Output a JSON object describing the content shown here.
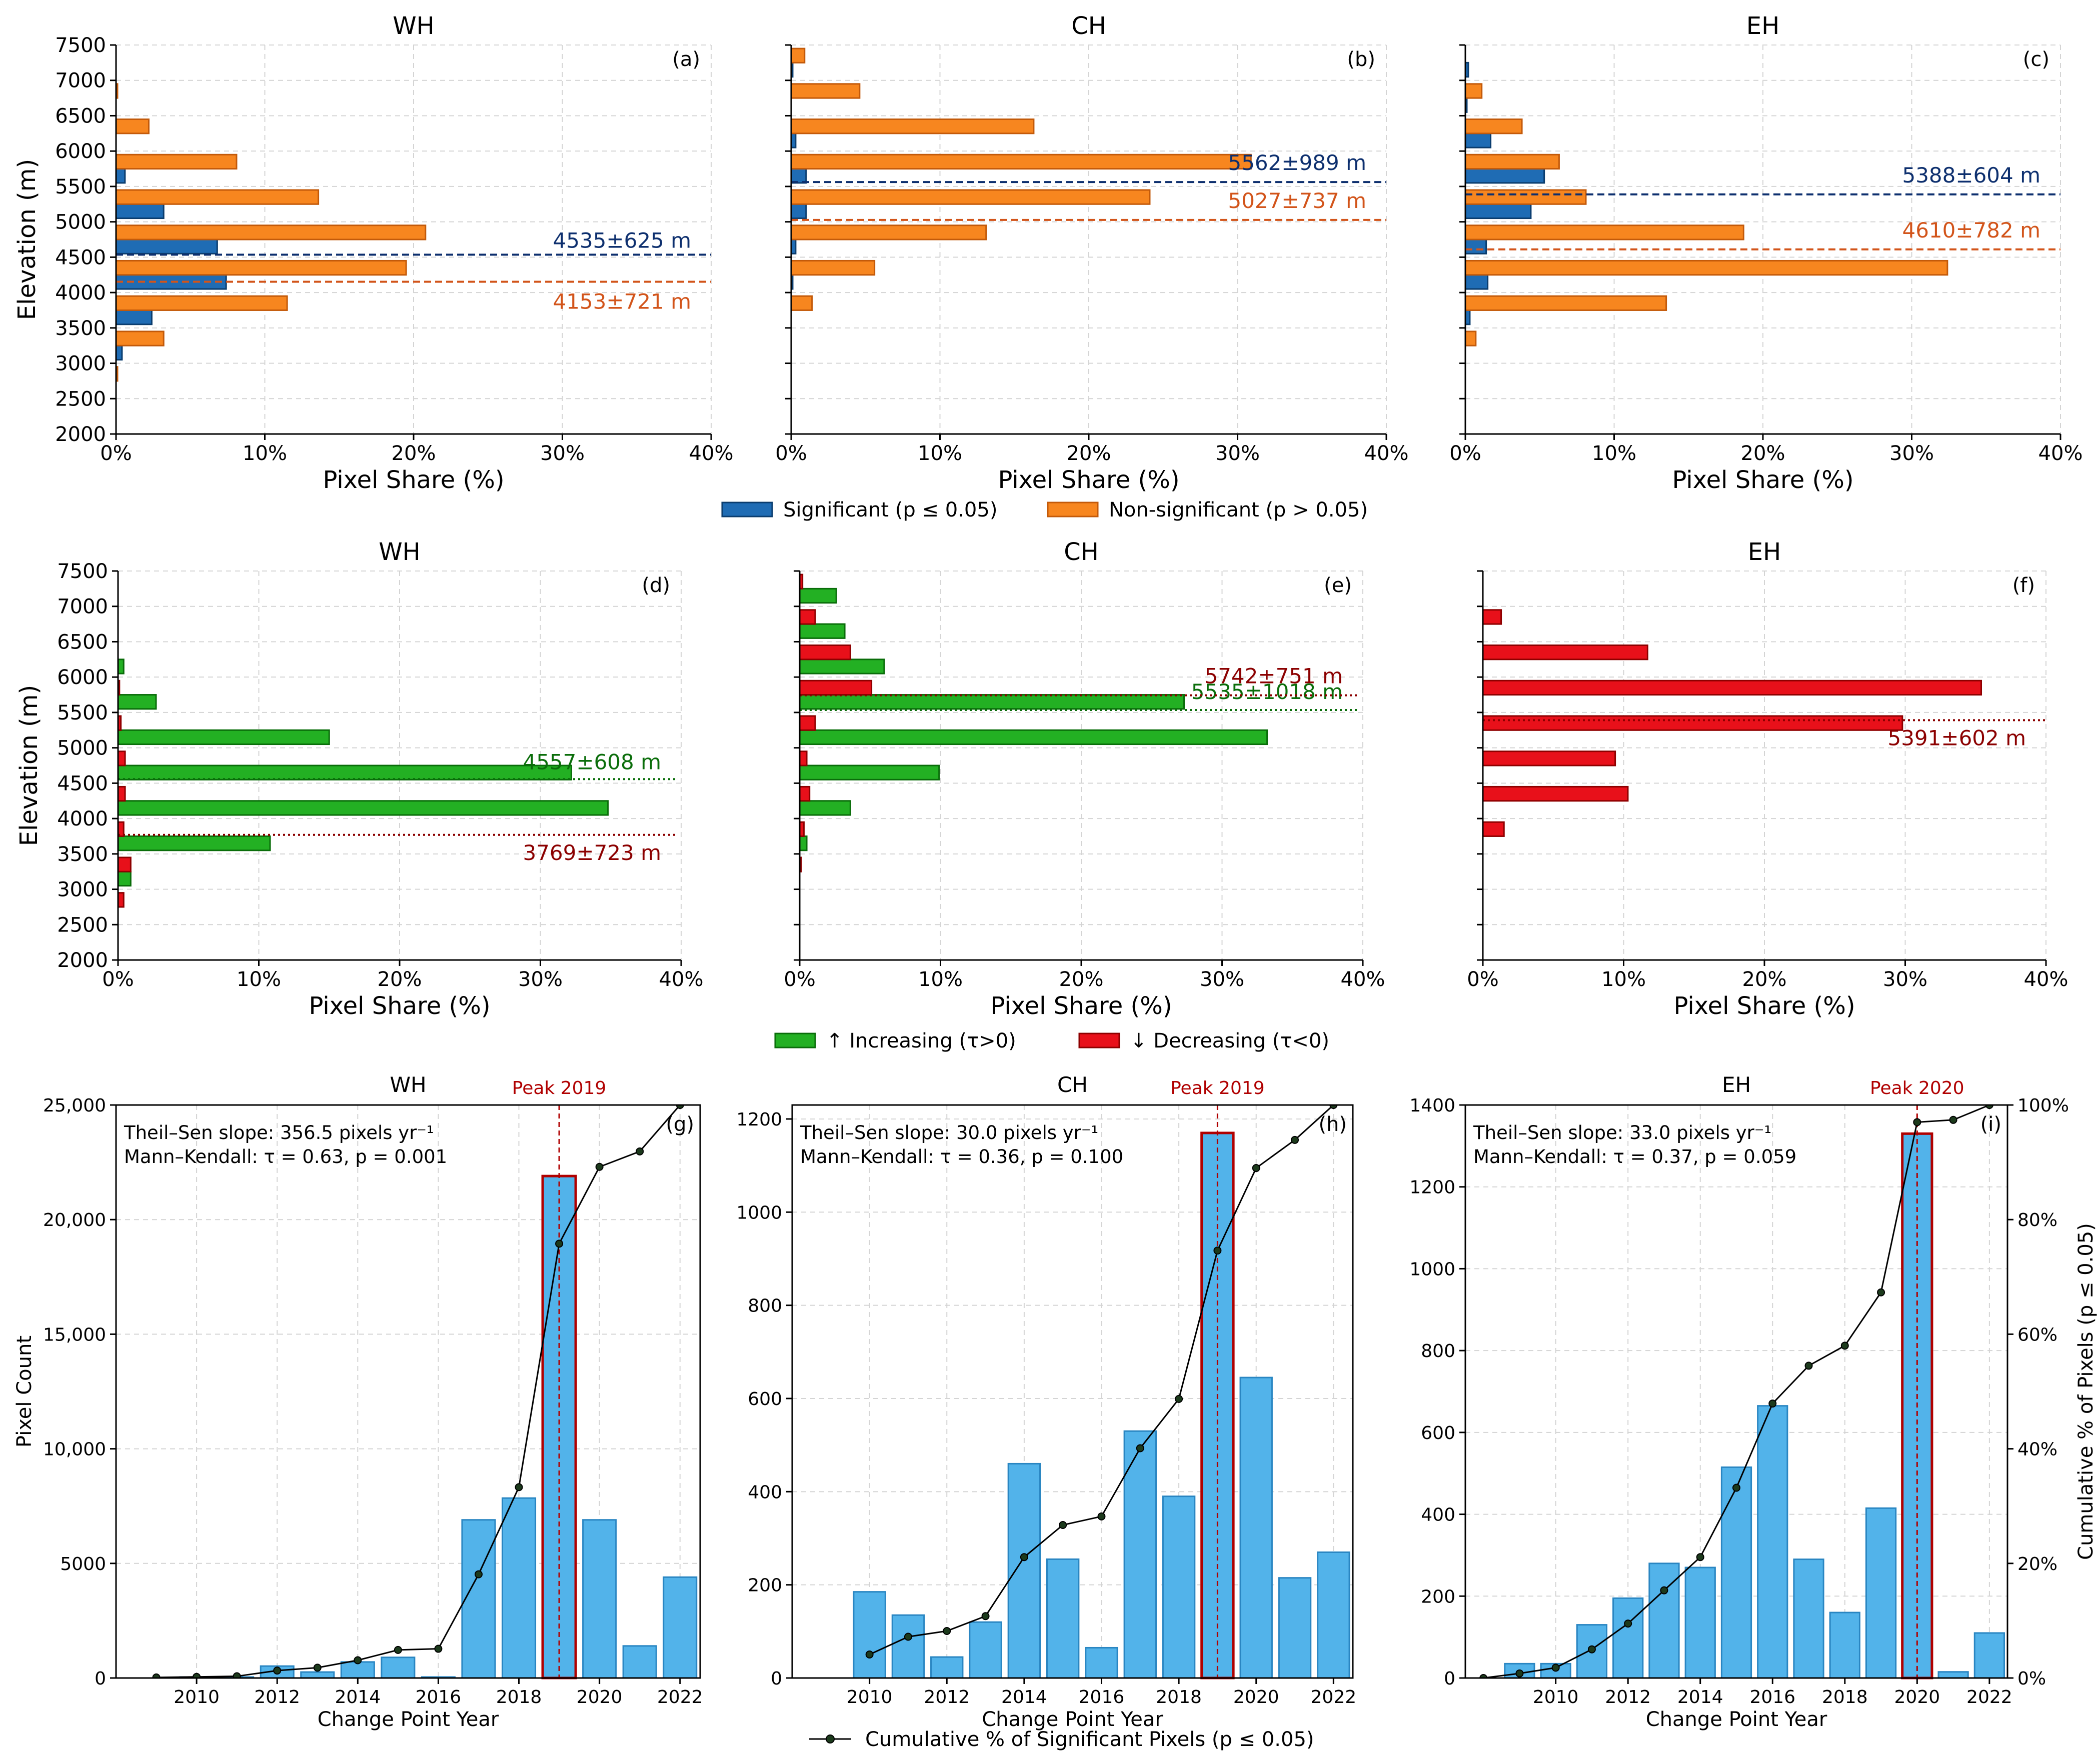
{
  "colors": {
    "significant": "#1f6cb4",
    "significant_edge": "#0b3d6e",
    "nonsignificant": "#f7861f",
    "nonsignificant_edge": "#c35a0a",
    "increasing": "#23b023",
    "increasing_edge": "#0a6d0a",
    "decreasing": "#e8101a",
    "decreasing_edge": "#8e0000",
    "count_bar": "#52b3ea",
    "count_edge": "#2a86c2",
    "peak_edge": "#b00000",
    "sig_line": "#0d2f6e",
    "nonsig_line": "#d2541a",
    "inc_text": "#0a6d0a",
    "dec_text": "#8b0000",
    "cumulative": "#000000"
  },
  "legends": {
    "row1": {
      "significant": "Significant (p ≤ 0.05)",
      "nonsignificant": "Non-significant (p > 0.05)"
    },
    "row2": {
      "increasing": "↑ Increasing (τ>0)",
      "decreasing": "↓ Decreasing (τ<0)"
    },
    "row3": {
      "cumulative": "Cumulative % of Significant Pixels (p ≤ 0.05)"
    }
  },
  "chart_data": [
    {
      "id": "a",
      "type": "bar",
      "orientation": "horizontal",
      "title": "WH",
      "panel_label": "(a)",
      "xlabel": "Pixel Share (%)",
      "ylabel": "Elevation (m)",
      "xlim": [
        0,
        40
      ],
      "ylim": [
        2000,
        7500
      ],
      "xticks": [
        "0%",
        "10%",
        "20%",
        "30%",
        "40%"
      ],
      "yticks": [
        "2000",
        "2500",
        "3000",
        "3500",
        "4000",
        "4500",
        "5000",
        "5500",
        "6000",
        "6500",
        "7000",
        "7500"
      ],
      "categories": [
        2500,
        3000,
        3500,
        4000,
        4500,
        5000,
        5500,
        6000,
        6500,
        7000
      ],
      "series": [
        {
          "name": "Significant (p ≤ 0.05)",
          "values": [
            0,
            0.4,
            2.4,
            7.4,
            6.8,
            3.2,
            0.6,
            0,
            0,
            0
          ]
        },
        {
          "name": "Non-significant (p > 0.05)",
          "values": [
            0.1,
            3.2,
            11.5,
            19.5,
            20.8,
            13.6,
            8.1,
            2.2,
            0.1,
            0
          ]
        }
      ],
      "ref_lines": [
        {
          "series": "Significant (p ≤ 0.05)",
          "value": 4535,
          "label": "4535±625 m"
        },
        {
          "series": "Non-significant (p > 0.05)",
          "value": 4153,
          "label": "4153±721 m"
        }
      ]
    },
    {
      "id": "b",
      "type": "bar",
      "orientation": "horizontal",
      "title": "CH",
      "panel_label": "(b)",
      "xlabel": "Pixel Share (%)",
      "ylabel": "",
      "xlim": [
        0,
        40
      ],
      "ylim": [
        2000,
        7500
      ],
      "xticks": [
        "0%",
        "10%",
        "20%",
        "30%",
        "40%"
      ],
      "categories": [
        2500,
        3000,
        3500,
        4000,
        4500,
        5000,
        5500,
        6000,
        6500,
        7000
      ],
      "series": [
        {
          "name": "Significant (p ≤ 0.05)",
          "values": [
            0,
            0,
            0,
            0.1,
            0.3,
            1.0,
            1.0,
            0.3,
            0,
            0.1
          ]
        },
        {
          "name": "Non-significant (p > 0.05)",
          "values": [
            0,
            0,
            1.4,
            5.6,
            13.1,
            24.1,
            30.9,
            16.3,
            4.6,
            0.9
          ]
        }
      ],
      "ref_lines": [
        {
          "series": "Significant (p ≤ 0.05)",
          "value": 5562,
          "label": "5562±989 m"
        },
        {
          "series": "Non-significant (p > 0.05)",
          "value": 5027,
          "label": "5027±737 m"
        }
      ]
    },
    {
      "id": "c",
      "type": "bar",
      "orientation": "horizontal",
      "title": "EH",
      "panel_label": "(c)",
      "xlabel": "Pixel Share (%)",
      "ylabel": "",
      "xlim": [
        0,
        40
      ],
      "ylim": [
        2000,
        7500
      ],
      "xticks": [
        "0%",
        "10%",
        "20%",
        "30%",
        "40%"
      ],
      "categories": [
        2500,
        3000,
        3500,
        4000,
        4500,
        5000,
        5500,
        6000,
        6500,
        7000
      ],
      "series": [
        {
          "name": "Significant (p ≤ 0.05)",
          "values": [
            0,
            0,
            0.3,
            1.5,
            1.4,
            4.4,
            5.3,
            1.7,
            0.1,
            0.2
          ]
        },
        {
          "name": "Non-significant (p > 0.05)",
          "values": [
            0,
            0.7,
            13.5,
            32.4,
            18.7,
            8.1,
            6.3,
            3.8,
            1.1,
            0
          ]
        }
      ],
      "ref_lines": [
        {
          "series": "Significant (p ≤ 0.05)",
          "value": 5388,
          "label": "5388±604 m"
        },
        {
          "series": "Non-significant (p > 0.05)",
          "value": 4610,
          "label": "4610±782 m"
        }
      ]
    },
    {
      "id": "d",
      "type": "bar",
      "orientation": "horizontal",
      "title": "WH",
      "panel_label": "(d)",
      "xlabel": "Pixel Share (%)",
      "ylabel": "Elevation (m)",
      "xlim": [
        0,
        40
      ],
      "ylim": [
        2000,
        7500
      ],
      "xticks": [
        "0%",
        "10%",
        "20%",
        "30%",
        "40%"
      ],
      "yticks": [
        "2000",
        "2500",
        "3000",
        "3500",
        "4000",
        "4500",
        "5000",
        "5500",
        "6000",
        "6500",
        "7000",
        "7500"
      ],
      "categories": [
        2500,
        3000,
        3500,
        4000,
        4500,
        5000,
        5500,
        6000,
        6500,
        7000
      ],
      "series": [
        {
          "name": "↑ Increasing (τ>0)",
          "values": [
            0,
            0.9,
            10.8,
            34.8,
            32.2,
            15.0,
            2.7,
            0.4,
            0,
            0
          ]
        },
        {
          "name": "↓ Decreasing (τ<0)",
          "values": [
            0.4,
            0.9,
            0.4,
            0.5,
            0.5,
            0.2,
            0.1,
            0,
            0,
            0
          ]
        }
      ],
      "ref_lines": [
        {
          "series": "↑ Increasing (τ>0)",
          "value": 4557,
          "label": "4557±608 m"
        },
        {
          "series": "↓ Decreasing (τ<0)",
          "value": 3769,
          "label": "3769±723 m"
        }
      ]
    },
    {
      "id": "e",
      "type": "bar",
      "orientation": "horizontal",
      "title": "CH",
      "panel_label": "(e)",
      "xlabel": "Pixel Share (%)",
      "ylabel": "",
      "xlim": [
        0,
        40
      ],
      "ylim": [
        2000,
        7500
      ],
      "xticks": [
        "0%",
        "10%",
        "20%",
        "30%",
        "40%"
      ],
      "categories": [
        2500,
        3000,
        3500,
        4000,
        4500,
        5000,
        5500,
        6000,
        6500,
        7000
      ],
      "series": [
        {
          "name": "↑ Increasing (τ>0)",
          "values": [
            0,
            0,
            0.5,
            3.6,
            9.9,
            33.2,
            27.3,
            6.0,
            3.2,
            2.6
          ]
        },
        {
          "name": "↓ Decreasing (τ<0)",
          "values": [
            0,
            0.1,
            0.3,
            0.7,
            0.5,
            1.1,
            5.1,
            3.6,
            1.1,
            0.2
          ]
        }
      ],
      "ref_lines": [
        {
          "series": "↑ Increasing (τ>0)",
          "value": 5535,
          "label": "5535±1018 m"
        },
        {
          "series": "↓ Decreasing (τ<0)",
          "value": 5742,
          "label": "5742±751 m"
        }
      ]
    },
    {
      "id": "f",
      "type": "bar",
      "orientation": "horizontal",
      "title": "EH",
      "panel_label": "(f)",
      "xlabel": "Pixel Share (%)",
      "ylabel": "",
      "xlim": [
        0,
        40
      ],
      "ylim": [
        2000,
        7500
      ],
      "xticks": [
        "0%",
        "10%",
        "20%",
        "30%",
        "40%"
      ],
      "categories": [
        2500,
        3000,
        3500,
        4000,
        4500,
        5000,
        5500,
        6000,
        6500,
        7000
      ],
      "series": [
        {
          "name": "↑ Increasing (τ>0)",
          "values": [
            0,
            0,
            0,
            0,
            0,
            0,
            0,
            0,
            0,
            0
          ]
        },
        {
          "name": "↓ Decreasing (τ<0)",
          "values": [
            0,
            0,
            1.5,
            10.3,
            9.4,
            29.8,
            35.4,
            11.7,
            1.3,
            0
          ]
        }
      ],
      "ref_lines": [
        {
          "series": "↓ Decreasing (τ<0)",
          "value": 5391,
          "label": "5391±602 m"
        }
      ]
    },
    {
      "id": "g",
      "type": "bar",
      "title": "WH",
      "panel_label": "(g)",
      "xlabel": "Change Point Year",
      "ylabel": "Pixel Count",
      "ylim": [
        0,
        25000
      ],
      "yticks": [
        "0",
        "5000",
        "10,000",
        "15,000",
        "20,000",
        "25,000"
      ],
      "xticks": [
        "2010",
        "2012",
        "2014",
        "2016",
        "2018",
        "2020",
        "2022"
      ],
      "x": [
        2009,
        2010,
        2011,
        2012,
        2013,
        2014,
        2015,
        2016,
        2017,
        2018,
        2019,
        2020,
        2021,
        2022
      ],
      "values": [
        0,
        10,
        20,
        520,
        260,
        700,
        900,
        20,
        6900,
        7850,
        21900,
        6900,
        1400,
        4400
      ],
      "cumulative_pct": [
        0.1,
        0.2,
        0.3,
        1.3,
        1.8,
        3.1,
        4.9,
        5.1,
        18.1,
        33.3,
        75.8,
        89.2,
        91.9,
        100
      ],
      "cumulative_series": "Cumulative % of Significant Pixels (p ≤ 0.05)",
      "peak": {
        "year": 2019,
        "label": "Peak 2019"
      },
      "stats": [
        "Theil–Sen slope: 356.5 pixels yr⁻¹",
        "Mann–Kendall: τ = 0.63, p = 0.001"
      ]
    },
    {
      "id": "h",
      "type": "bar",
      "title": "CH",
      "panel_label": "(h)",
      "xlabel": "Change Point Year",
      "ylabel": "",
      "ylim": [
        0,
        1230
      ],
      "yticks": [
        "0",
        "200",
        "400",
        "600",
        "800",
        "1000",
        "1200"
      ],
      "xticks": [
        "2010",
        "2012",
        "2014",
        "2016",
        "2018",
        "2020",
        "2022"
      ],
      "x": [
        2010,
        2011,
        2012,
        2013,
        2014,
        2015,
        2016,
        2017,
        2018,
        2019,
        2020,
        2021,
        2022
      ],
      "values": [
        185,
        135,
        45,
        120,
        460,
        255,
        65,
        530,
        390,
        1170,
        645,
        215,
        270
      ],
      "cumulative_pct": [
        4.1,
        7.2,
        8.2,
        10.8,
        21.1,
        26.7,
        28.2,
        40.1,
        48.7,
        74.6,
        89.0,
        93.9,
        100
      ],
      "cumulative_series": "Cumulative % of Significant Pixels (p ≤ 0.05)",
      "peak": {
        "year": 2019,
        "label": "Peak 2019"
      },
      "stats": [
        "Theil–Sen slope: 30.0 pixels yr⁻¹",
        "Mann–Kendall: τ = 0.36, p = 0.100"
      ]
    },
    {
      "id": "i",
      "type": "bar",
      "title": "EH",
      "panel_label": "(i)",
      "xlabel": "Change Point Year",
      "ylabel": "",
      "ylabel_right": "Cumulative % of Pixels (p ≤ 0.05)",
      "ylim": [
        0,
        1400
      ],
      "ylim_right": [
        0,
        100
      ],
      "yticks": [
        "0",
        "200",
        "400",
        "600",
        "800",
        "1000",
        "1200",
        "1400"
      ],
      "yticks_right": [
        "0%",
        "20%",
        "40%",
        "60%",
        "80%",
        "100%"
      ],
      "xticks": [
        "2010",
        "2012",
        "2014",
        "2016",
        "2018",
        "2020",
        "2022"
      ],
      "x": [
        2008,
        2009,
        2010,
        2011,
        2012,
        2013,
        2014,
        2015,
        2016,
        2017,
        2018,
        2019,
        2020,
        2021,
        2022
      ],
      "values": [
        0,
        35,
        35,
        130,
        195,
        280,
        270,
        515,
        665,
        290,
        160,
        415,
        1330,
        15,
        110
      ],
      "cumulative_pct": [
        0,
        0.8,
        1.8,
        5.0,
        9.5,
        15.3,
        21.1,
        33.2,
        47.9,
        54.5,
        58.0,
        67.3,
        97.0,
        97.4,
        100
      ],
      "cumulative_series": "Cumulative % of Significant Pixels (p ≤ 0.05)",
      "peak": {
        "year": 2020,
        "label": "Peak 2020"
      },
      "stats": [
        "Theil–Sen slope: 33.0 pixels yr⁻¹",
        "Mann–Kendall: τ = 0.37, p = 0.059"
      ]
    }
  ]
}
